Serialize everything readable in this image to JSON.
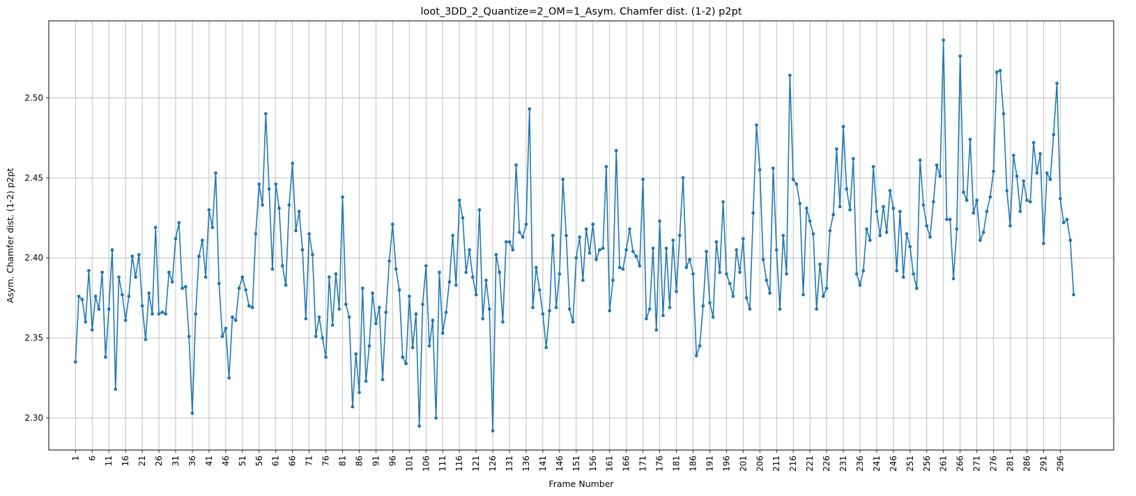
{
  "chart_data": {
    "type": "line",
    "title": "loot_3DD_2_Quantize=2_OM=1_Asym. Chamfer dist. (1-2) p2pt",
    "xlabel": "Frame Number",
    "ylabel": "Asym. Chamfer dist. (1-2) p2pt",
    "xlim": [
      -7,
      312
    ],
    "ylim": [
      2.28,
      2.548
    ],
    "x_ticks": [
      1,
      6,
      11,
      16,
      21,
      26,
      31,
      36,
      41,
      46,
      51,
      56,
      61,
      66,
      71,
      76,
      81,
      86,
      91,
      96,
      101,
      106,
      111,
      116,
      121,
      126,
      131,
      136,
      141,
      146,
      151,
      156,
      161,
      166,
      171,
      176,
      181,
      186,
      191,
      196,
      201,
      206,
      211,
      216,
      221,
      226,
      231,
      236,
      241,
      246,
      251,
      256,
      261,
      266,
      271,
      276,
      281,
      286,
      291,
      296
    ],
    "y_ticks": [
      2.3,
      2.35,
      2.4,
      2.45,
      2.5
    ],
    "y_tick_labels": [
      "2.30",
      "2.35",
      "2.40",
      "2.45",
      "2.50"
    ],
    "grid": true,
    "color": "#1f77b4",
    "marker": "circle",
    "x_start": 1,
    "series": [
      {
        "values": [
          2.335,
          2.376,
          2.374,
          2.36,
          2.392,
          2.355,
          2.376,
          2.368,
          2.391,
          2.338,
          2.368,
          2.405,
          2.318,
          2.388,
          2.377,
          2.361,
          2.376,
          2.401,
          2.388,
          2.402,
          2.37,
          2.349,
          2.378,
          2.365,
          2.419,
          2.365,
          2.366,
          2.365,
          2.391,
          2.385,
          2.412,
          2.422,
          2.381,
          2.382,
          2.351,
          2.303,
          2.365,
          2.401,
          2.411,
          2.388,
          2.43,
          2.419,
          2.453,
          2.384,
          2.351,
          2.356,
          2.325,
          2.363,
          2.361,
          2.381,
          2.388,
          2.38,
          2.37,
          2.369,
          2.415,
          2.446,
          2.433,
          2.49,
          2.443,
          2.393,
          2.446,
          2.431,
          2.395,
          2.383,
          2.433,
          2.459,
          2.417,
          2.429,
          2.405,
          2.362,
          2.415,
          2.402,
          2.351,
          2.363,
          2.35,
          2.338,
          2.388,
          2.358,
          2.39,
          2.368,
          2.438,
          2.371,
          2.363,
          2.307,
          2.34,
          2.316,
          2.381,
          2.323,
          2.345,
          2.378,
          2.359,
          2.369,
          2.324,
          2.366,
          2.398,
          2.421,
          2.393,
          2.38,
          2.338,
          2.334,
          2.376,
          2.344,
          2.365,
          2.295,
          2.371,
          2.395,
          2.345,
          2.361,
          2.3,
          2.391,
          2.353,
          2.366,
          2.385,
          2.414,
          2.383,
          2.436,
          2.425,
          2.391,
          2.405,
          2.388,
          2.377,
          2.43,
          2.362,
          2.386,
          2.368,
          2.292,
          2.402,
          2.391,
          2.36,
          2.41,
          2.41,
          2.405,
          2.458,
          2.416,
          2.413,
          2.421,
          2.493,
          2.369,
          2.394,
          2.38,
          2.365,
          2.344,
          2.367,
          2.414,
          2.369,
          2.39,
          2.449,
          2.414,
          2.368,
          2.36,
          2.4,
          2.413,
          2.386,
          2.418,
          2.403,
          2.421,
          2.399,
          2.405,
          2.406,
          2.457,
          2.367,
          2.386,
          2.467,
          2.394,
          2.393,
          2.405,
          2.418,
          2.404,
          2.401,
          2.395,
          2.449,
          2.362,
          2.368,
          2.406,
          2.355,
          2.423,
          2.364,
          2.406,
          2.369,
          2.411,
          2.379,
          2.414,
          2.45,
          2.394,
          2.399,
          2.39,
          2.339,
          2.345,
          2.37,
          2.404,
          2.372,
          2.363,
          2.41,
          2.391,
          2.435,
          2.39,
          2.384,
          2.376,
          2.405,
          2.391,
          2.412,
          2.375,
          2.368,
          2.428,
          2.483,
          2.455,
          2.399,
          2.386,
          2.378,
          2.456,
          2.405,
          2.368,
          2.414,
          2.39,
          2.514,
          2.449,
          2.446,
          2.434,
          2.377,
          2.431,
          2.423,
          2.415,
          2.368,
          2.396,
          2.376,
          2.381,
          2.417,
          2.427,
          2.468,
          2.432,
          2.482,
          2.443,
          2.43,
          2.462,
          2.39,
          2.383,
          2.392,
          2.418,
          2.411,
          2.457,
          2.429,
          2.414,
          2.432,
          2.416,
          2.442,
          2.431,
          2.392,
          2.429,
          2.388,
          2.415,
          2.407,
          2.39,
          2.381,
          2.461,
          2.433,
          2.42,
          2.413,
          2.435,
          2.458,
          2.451,
          2.536,
          2.424,
          2.424,
          2.387,
          2.418,
          2.526,
          2.441,
          2.436,
          2.474,
          2.428,
          2.436,
          2.411,
          2.416,
          2.429,
          2.438,
          2.454,
          2.516,
          2.517,
          2.49,
          2.442,
          2.42,
          2.464,
          2.451,
          2.429,
          2.448,
          2.436,
          2.435,
          2.472,
          2.453,
          2.465,
          2.409,
          2.453,
          2.449,
          2.477,
          2.509,
          2.437,
          2.422,
          2.424,
          2.411,
          2.377
        ]
      }
    ]
  }
}
